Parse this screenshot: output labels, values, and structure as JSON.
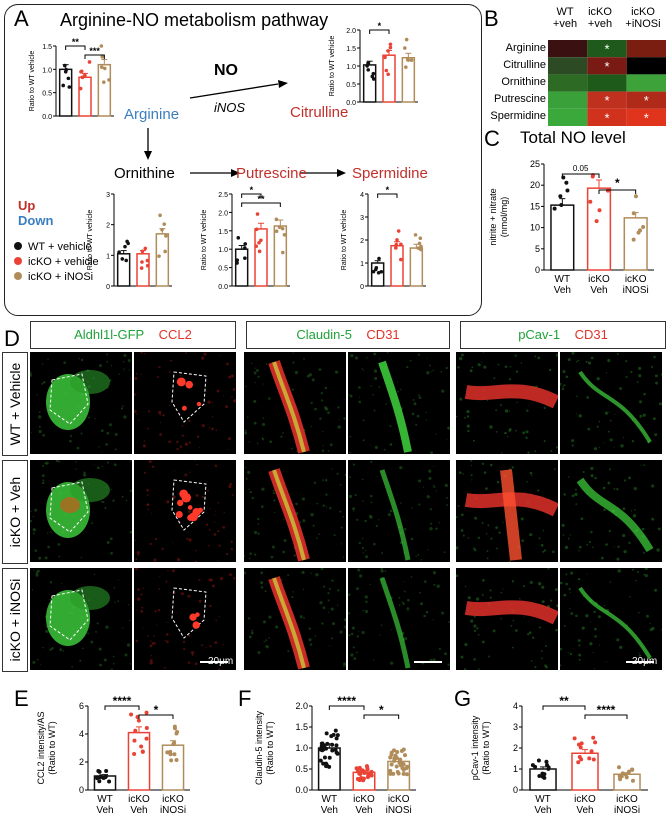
{
  "panel_letters": {
    "A": "A",
    "B": "B",
    "C": "C",
    "D": "D",
    "E": "E",
    "F": "F",
    "G": "G"
  },
  "panelA": {
    "title": "Arginine-NO metabolism pathway",
    "nodes": {
      "arginine": "Arginine",
      "no": "NO",
      "inos": "iNOS",
      "citrulline": "Citrulline",
      "ornithine": "Ornithine",
      "putrescine": "Putrescine",
      "spermidine": "Spermidine"
    },
    "legend_updown": {
      "up": "Up",
      "down": "Down"
    },
    "groups": [
      "WT + vehicle",
      "icKO + vehicle",
      "icKO + iNOSi"
    ],
    "ylabel": "Ratio to WT vehicle"
  },
  "panelB": {
    "columns": [
      "WT\n+veh",
      "icKO\n+veh",
      "icKO\n+iNOSi"
    ],
    "rows": [
      "Arginine",
      "Citrulline",
      "Ornithine",
      "Putrescine",
      "Spermidine"
    ],
    "star": "*"
  },
  "panelC": {
    "title": "Total NO level",
    "ylabel": "nitrite + nitrate\n(nmol/mg)",
    "pval": "0.05",
    "sig": "*"
  },
  "panelD": {
    "headers": [
      {
        "green": "Aldhl1l-GFP",
        "red": "CCL2"
      },
      {
        "green": "Claudin-5",
        "red": "CD31"
      },
      {
        "green": "pCav-1",
        "red": "CD31"
      }
    ],
    "rows": [
      "WT + Vehicle",
      "icKO + Veh",
      "icKO + iNOSi"
    ],
    "scalebar": "20μm"
  },
  "chart_data": [
    {
      "id": "A-arginine",
      "type": "bar",
      "categories": [
        "WT + vehicle",
        "icKO + vehicle",
        "icKO + iNOSi"
      ],
      "values": [
        1.0,
        0.83,
        1.1
      ],
      "ylabel": "Ratio to WT vehicle",
      "ylim": [
        0,
        1.5
      ],
      "yticks": [
        "0.0",
        "0.5",
        "1.0",
        "1.5"
      ],
      "sig": [
        {
          "from": 0,
          "to": 1,
          "label": "**"
        },
        {
          "from": 1,
          "to": 2,
          "label": "***"
        }
      ]
    },
    {
      "id": "A-citrulline",
      "type": "bar",
      "categories": [
        "WT + vehicle",
        "icKO + vehicle",
        "icKO + iNOSi"
      ],
      "values": [
        1.03,
        1.3,
        1.23
      ],
      "ylabel": "Ratio to WT vehicle",
      "ylim": [
        0,
        2.0
      ],
      "yticks": [
        "0.0",
        "0.5",
        "1.0",
        "1.5",
        "2.0"
      ],
      "sig": [
        {
          "from": 0,
          "to": 1,
          "label": "*"
        }
      ]
    },
    {
      "id": "A-ornithine",
      "type": "bar",
      "categories": [
        "WT + vehicle",
        "icKO + vehicle",
        "icKO + iNOSi"
      ],
      "values": [
        1.05,
        1.05,
        1.7
      ],
      "ylabel": "Ratio to WT vehicle",
      "ylim": [
        0,
        3
      ],
      "yticks": [
        "0",
        "1",
        "2",
        "3"
      ],
      "sig": []
    },
    {
      "id": "A-putrescine",
      "type": "bar",
      "categories": [
        "WT + vehicle",
        "icKO + vehicle",
        "icKO + iNOSi"
      ],
      "values": [
        1.0,
        1.55,
        1.63
      ],
      "ylabel": "Ratio to WT vehicle",
      "ylim": [
        0,
        2.5
      ],
      "yticks": [
        "0.0",
        "0.5",
        "1.0",
        "1.5",
        "2.0",
        "2.5"
      ],
      "sig": [
        {
          "from": 0,
          "to": 1,
          "label": "*"
        },
        {
          "from": 0,
          "to": 2,
          "label": "**"
        }
      ]
    },
    {
      "id": "A-spermidine",
      "type": "bar",
      "categories": [
        "WT + vehicle",
        "icKO + vehicle",
        "icKO + iNOSi"
      ],
      "values": [
        1.0,
        1.75,
        1.65
      ],
      "ylabel": "Ratio to WT vehicle",
      "ylim": [
        0,
        4
      ],
      "yticks": [
        "0",
        "1",
        "2",
        "3",
        "4"
      ],
      "sig": [
        {
          "from": 0,
          "to": 1,
          "label": "*"
        }
      ]
    },
    {
      "id": "C",
      "type": "bar",
      "categories": [
        "WT\nVeh",
        "icKO\nVeh",
        "icKO\niNOSi"
      ],
      "values": [
        15.3,
        19.3,
        12.3
      ],
      "ylabel": "nitrite + nitrate\n(nmol/mg)",
      "ylim": [
        0,
        25
      ],
      "yticks": [
        "0",
        "5",
        "10",
        "15",
        "20",
        "25"
      ]
    },
    {
      "id": "E",
      "type": "bar",
      "categories": [
        "WT\nVeh",
        "icKO\nVeh",
        "icKO\niNOSi"
      ],
      "values": [
        1.0,
        4.1,
        3.2
      ],
      "ylabel": "CCL2 intensity/AS\n(Ratio to WT)",
      "ylim": [
        0,
        6
      ],
      "yticks": [
        "0",
        "2",
        "4",
        "6"
      ],
      "sig": [
        {
          "from": 0,
          "to": 1,
          "label": "****"
        },
        {
          "from": 1,
          "to": 2,
          "label": "*"
        }
      ]
    },
    {
      "id": "F",
      "type": "bar",
      "categories": [
        "WT\nVeh",
        "icKO\nVeh",
        "icKO\niNOSi"
      ],
      "values": [
        1.0,
        0.42,
        0.68
      ],
      "ylabel": "Claudin-5 intensity\n(Ratio to WT)",
      "ylim": [
        0,
        2.0
      ],
      "yticks": [
        "0.0",
        "0.5",
        "1.0",
        "1.5",
        "2.0"
      ],
      "sig": [
        {
          "from": 0,
          "to": 1,
          "label": "****"
        },
        {
          "from": 1,
          "to": 2,
          "label": "*"
        }
      ]
    },
    {
      "id": "G",
      "type": "bar",
      "categories": [
        "WT\nVeh",
        "icKO\nVeh",
        "icKO\niNOSi"
      ],
      "values": [
        1.0,
        1.75,
        0.75
      ],
      "ylabel": "pCav-1 intensity\n(Ratio to WT)",
      "ylim": [
        0,
        4
      ],
      "yticks": [
        "0",
        "1",
        "2",
        "3",
        "4"
      ],
      "sig": [
        {
          "from": 0,
          "to": 1,
          "label": "**"
        },
        {
          "from": 1,
          "to": 2,
          "label": "****"
        }
      ]
    }
  ]
}
